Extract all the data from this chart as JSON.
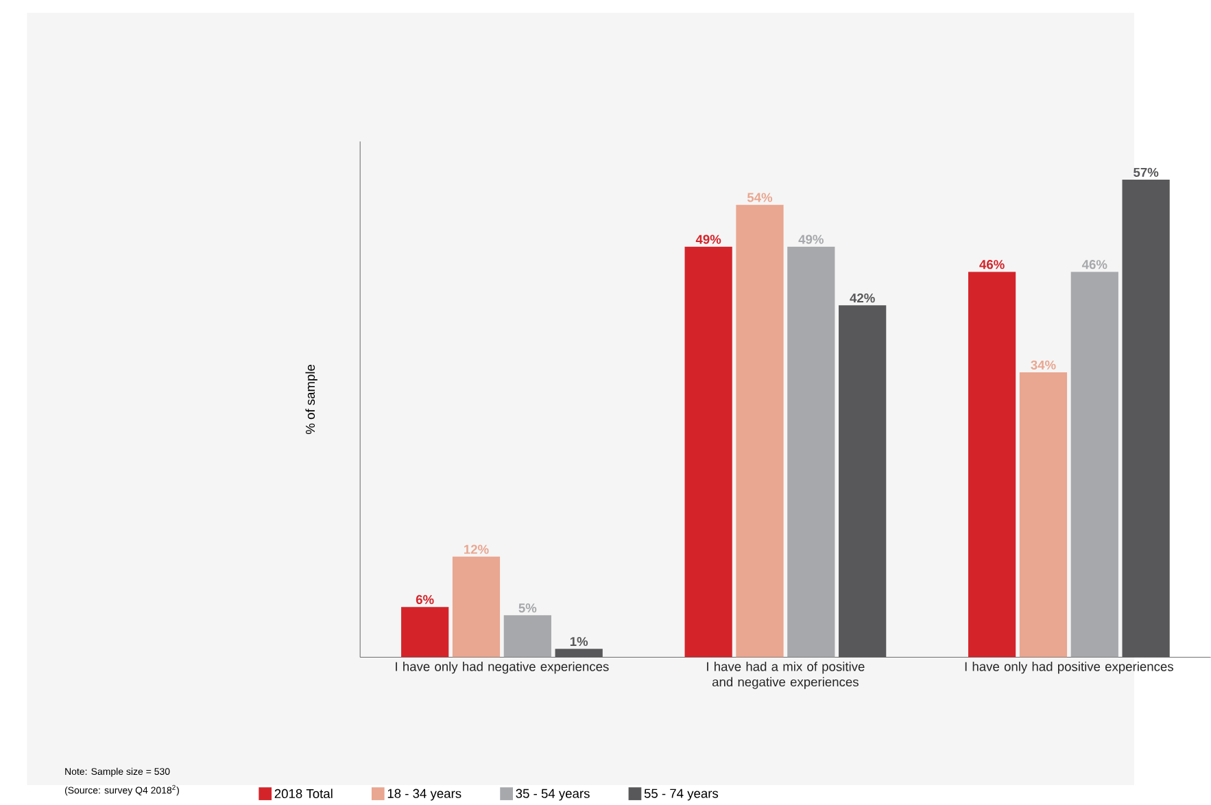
{
  "chart_data": {
    "type": "bar",
    "ylabel": "% of sample",
    "categories": [
      "I have only had negative experiences",
      "I have had a mix of positive and negative experiences",
      "I have only had positive experiences"
    ],
    "series": [
      {
        "name": "2018 Total",
        "color": "#d4242a",
        "values": [
          6,
          49,
          46
        ],
        "value_labels": [
          "6%",
          "49%",
          "46%"
        ]
      },
      {
        "name": "18 - 34 years",
        "color": "#e9a690",
        "values": [
          12,
          54,
          34
        ],
        "value_labels": [
          "12%",
          "54%",
          "34%"
        ]
      },
      {
        "name": "35 - 54 years",
        "color": "#a7a8ab",
        "values": [
          5,
          49,
          46
        ],
        "value_labels": [
          "5%",
          "49%",
          "46%"
        ]
      },
      {
        "name": "55 - 74 years",
        "color": "#58585a",
        "values": [
          1,
          42,
          57
        ],
        "value_labels": [
          "1%",
          "42%",
          "57%"
        ]
      }
    ],
    "legend": "bottom left",
    "tick_labels": "x",
    "annotations": [
      "Note: Sample size = 530",
      "(Source: survey Q4 2018$^{2}$)"
    ]
  }
}
